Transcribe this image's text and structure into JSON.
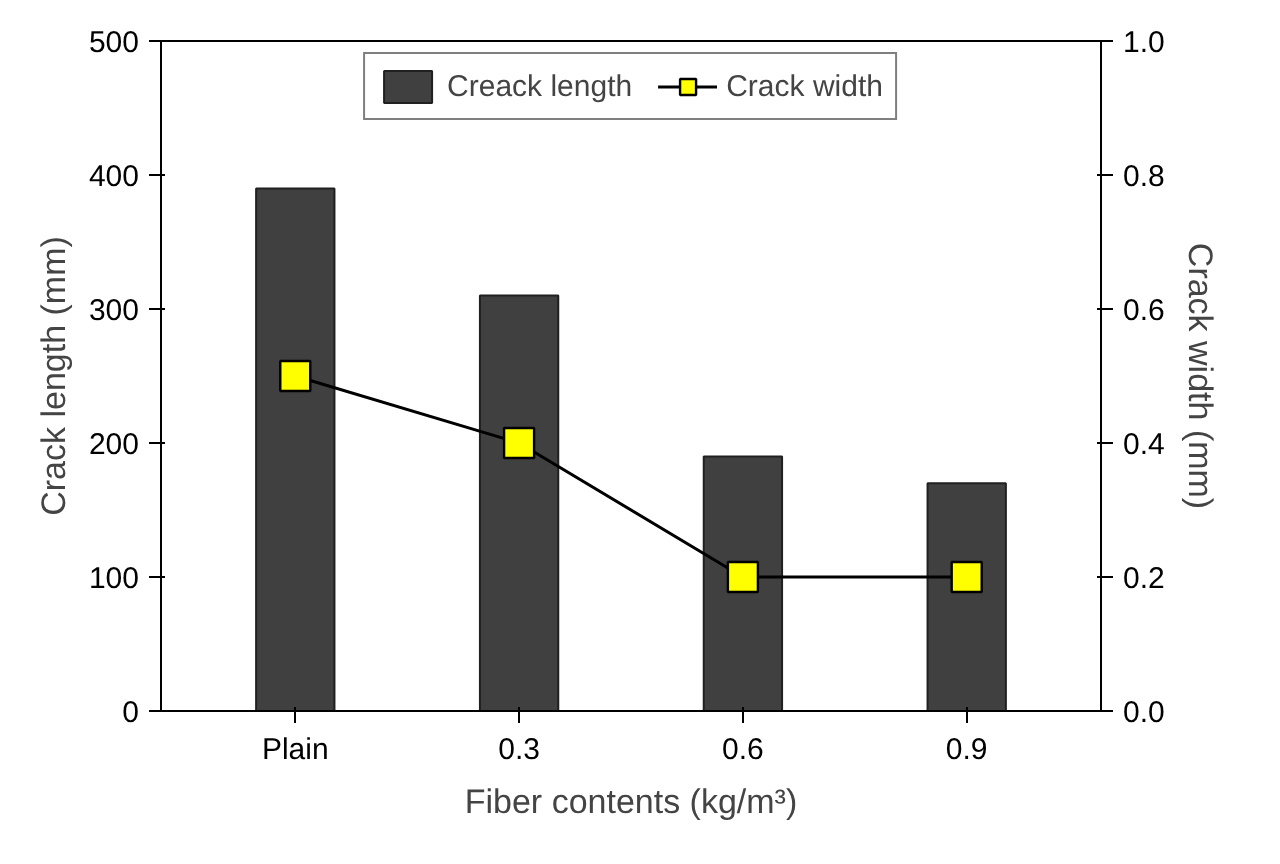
{
  "chart_data": {
    "type": "bar",
    "xlabel": "Fiber contents (kg/m³)",
    "ylabel": "Crack length (mm)",
    "y2label": "Crack width (mm)",
    "categories": [
      "Plain",
      "0.3",
      "0.6",
      "0.9"
    ],
    "ylim": [
      0,
      500
    ],
    "yticks": [
      0,
      100,
      200,
      300,
      400,
      500
    ],
    "y2lim": [
      0,
      1.0
    ],
    "y2ticks": [
      {
        "value": 0,
        "label": "0.0"
      },
      {
        "value": 0.2,
        "label": "0.2"
      },
      {
        "value": 0.4,
        "label": "0.4"
      },
      {
        "value": 0.6,
        "label": "0.6"
      },
      {
        "value": 0.8,
        "label": "0.8"
      },
      {
        "value": 1.0,
        "label": "1.0"
      }
    ],
    "legend": "top",
    "grid": false,
    "marker": "square",
    "series": [
      {
        "name": "Creack length",
        "color": "#404040",
        "values": [
          390,
          310,
          190,
          170
        ]
      },
      {
        "name": "Crack width",
        "type": "line",
        "axis": "y2",
        "color": "#ffff00",
        "values": [
          0.5,
          0.4,
          0.2,
          0.2
        ]
      }
    ]
  }
}
